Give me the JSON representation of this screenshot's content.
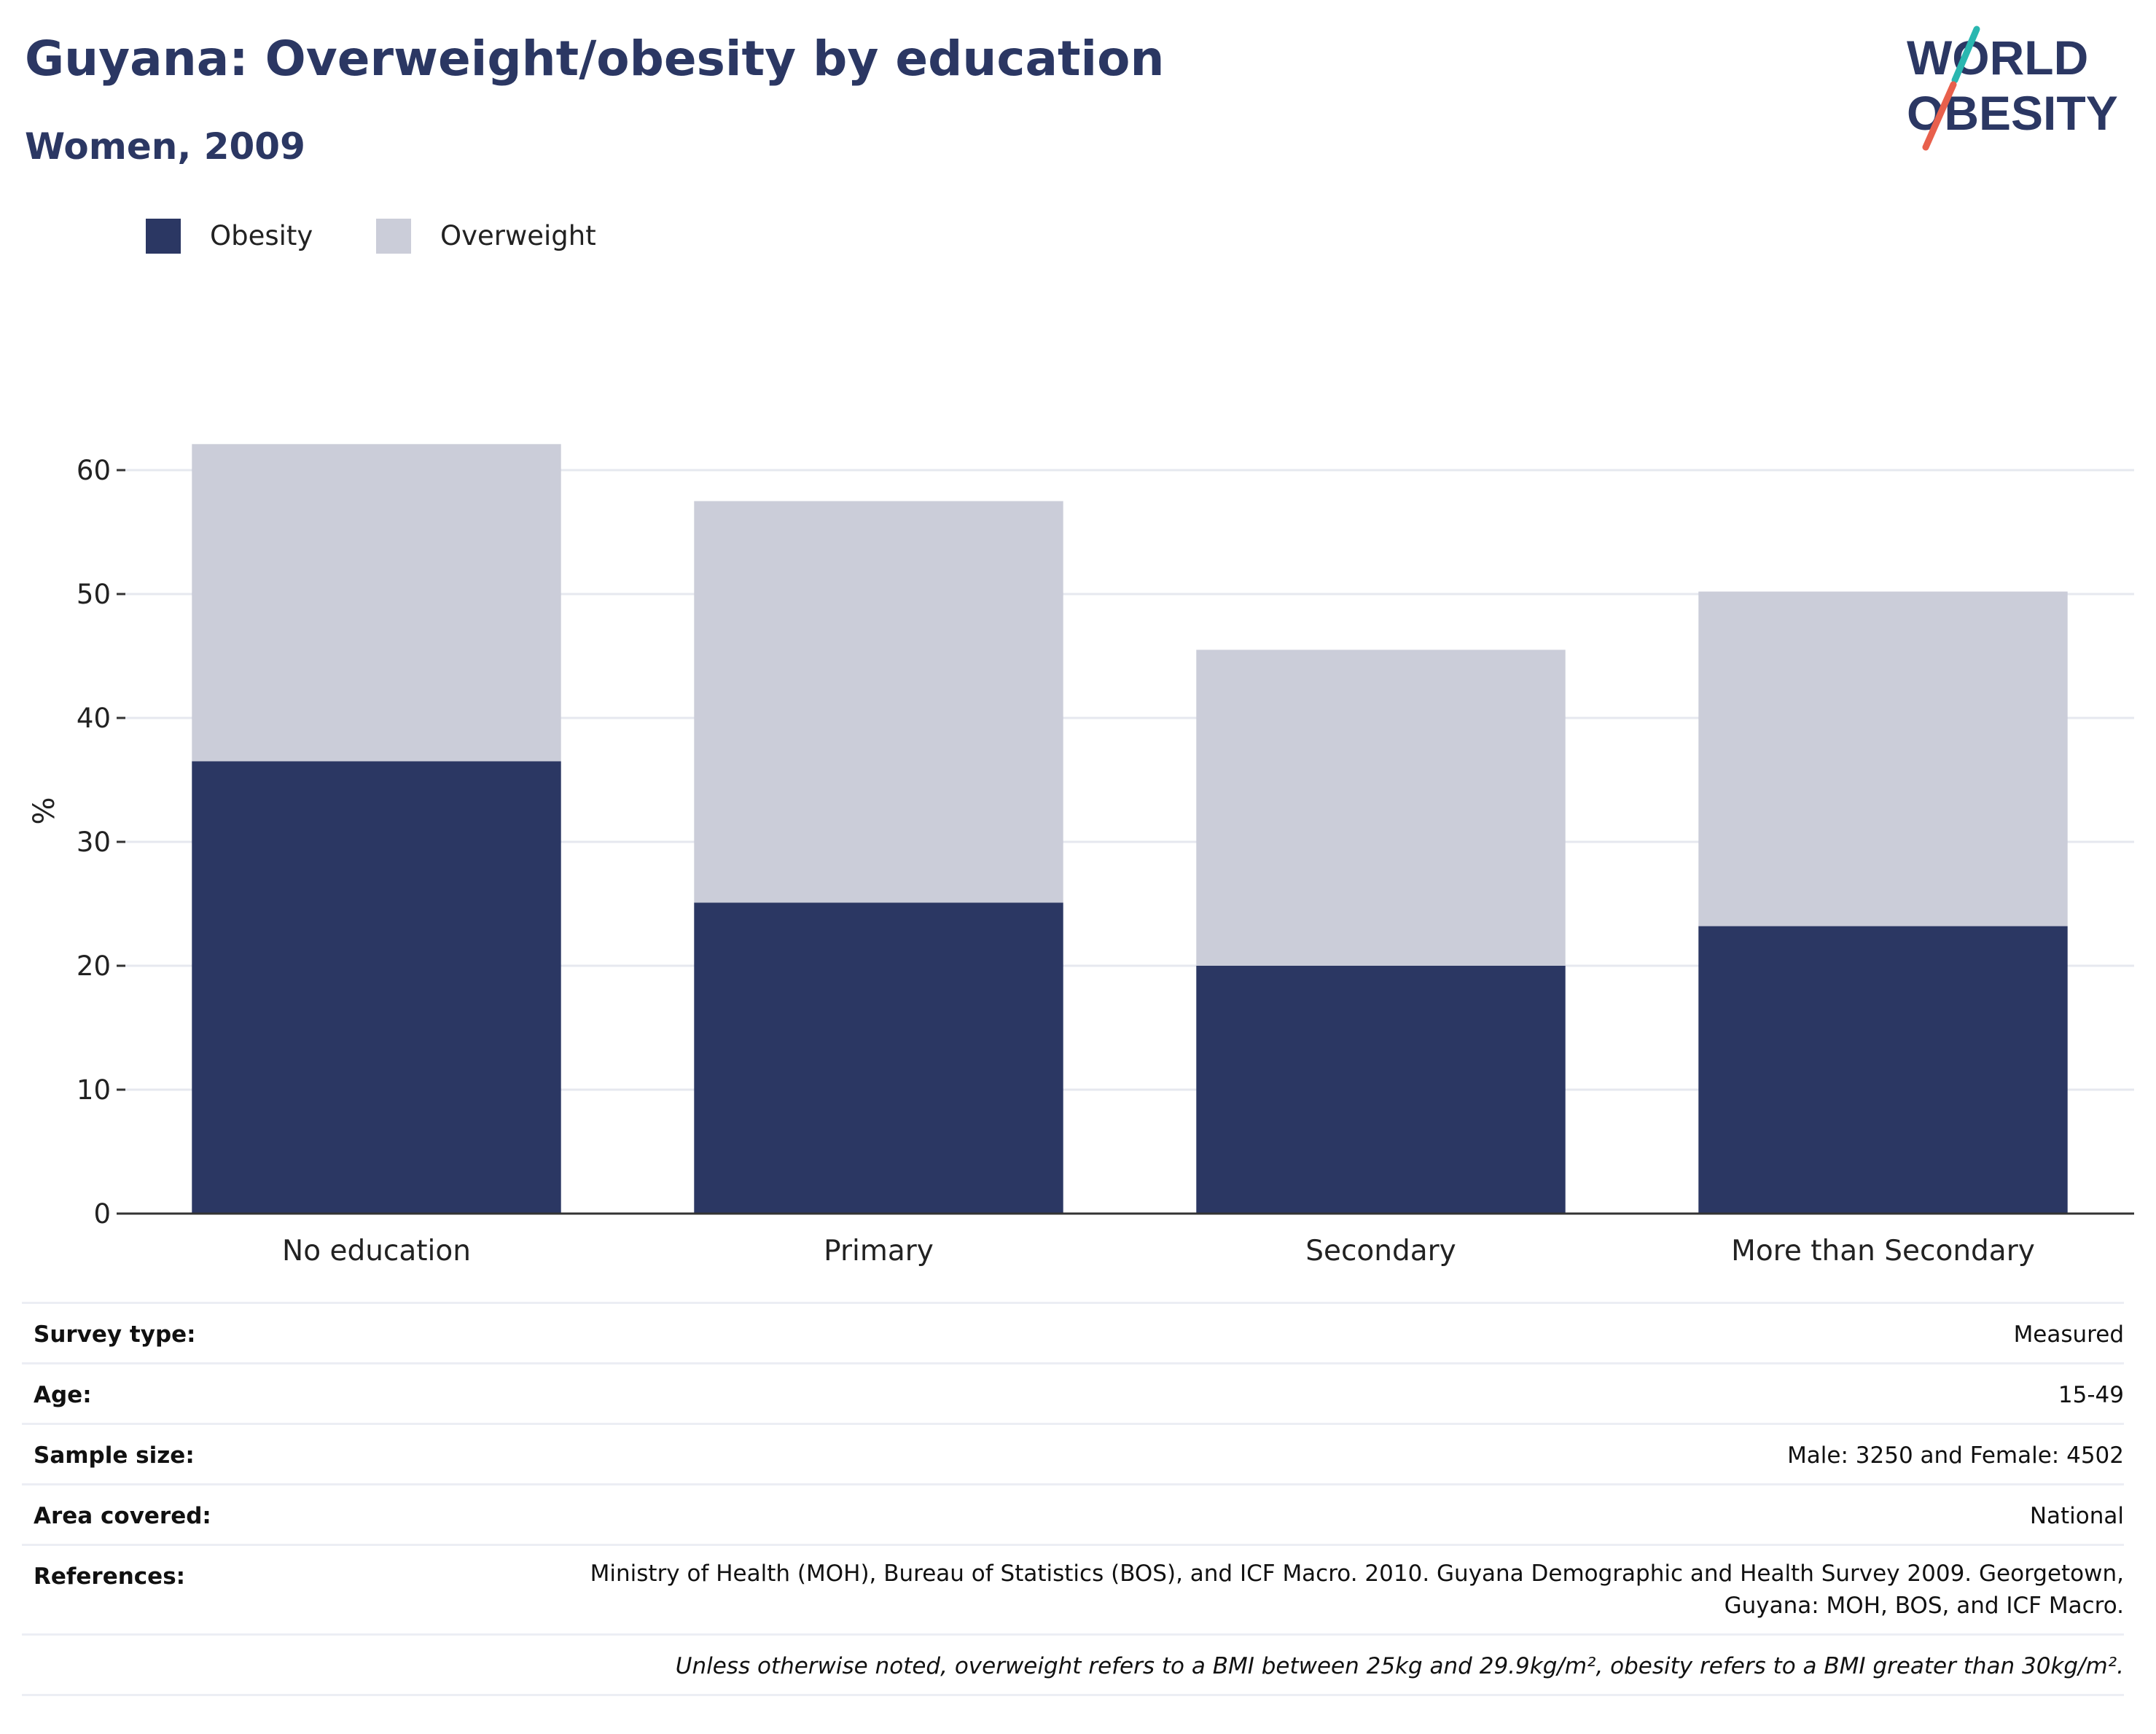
{
  "header": {
    "title": "Guyana: Overweight/obesity by education",
    "subtitle": "Women, 2009"
  },
  "logo": {
    "line1": "WORLD",
    "line2": "OBESITY",
    "text_color": "#2b3763",
    "slash_teal": "#2ab7b0",
    "slash_coral": "#e8604c"
  },
  "colors": {
    "obesity": "#2b3763",
    "overweight": "#cbcdd9",
    "grid": "#e6e8ef",
    "axis": "#333333"
  },
  "legend": [
    {
      "label": "Obesity",
      "color": "#2b3763"
    },
    {
      "label": "Overweight",
      "color": "#cbcdd9"
    }
  ],
  "chart_data": {
    "type": "bar",
    "stacked": true,
    "categories": [
      "No education",
      "Primary",
      "Secondary",
      "More than Secondary"
    ],
    "series": [
      {
        "name": "Obesity",
        "values": [
          36.5,
          25.1,
          20.0,
          23.2
        ]
      },
      {
        "name": "Overweight",
        "values": [
          25.6,
          32.4,
          25.5,
          27.0
        ]
      }
    ],
    "ylabel": "%",
    "ylim": [
      0,
      65
    ],
    "yticks": [
      0,
      10,
      20,
      30,
      40,
      50,
      60
    ],
    "grid": true,
    "legend_position": "top-left"
  },
  "info_table": [
    {
      "key": "Survey type:",
      "value": "Measured"
    },
    {
      "key": "Age:",
      "value": "15-49"
    },
    {
      "key": "Sample size:",
      "value": "Male: 3250 and Female: 4502"
    },
    {
      "key": "Area covered:",
      "value": "National"
    },
    {
      "key": "References:",
      "value": "Ministry of Health (MOH), Bureau of Statistics (BOS), and ICF Macro. 2010. Guyana Demographic and Health Survey 2009. Georgetown, Guyana: MOH, BOS, and ICF Macro."
    }
  ],
  "footnote": "Unless otherwise noted, overweight refers to a BMI between 25kg and 29.9kg/m², obesity refers to a BMI greater than 30kg/m²."
}
